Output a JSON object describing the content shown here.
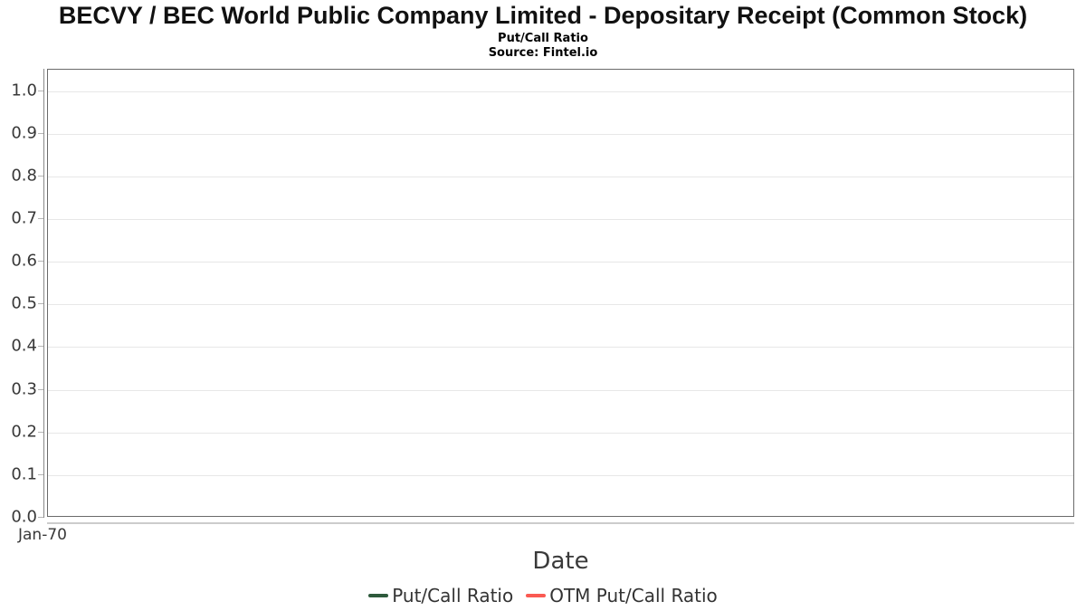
{
  "header": {
    "title": "BECVY / BEC World Public Company Limited - Depositary Receipt (Common Stock)",
    "subtitle": "Put/Call Ratio",
    "source": "Source: Fintel.io"
  },
  "chart_data": {
    "type": "line",
    "title": "Put/Call Ratio",
    "xlabel": "Date",
    "ylabel": "",
    "ylim": [
      0,
      1.05
    ],
    "grid": true,
    "legend_position": "bottom",
    "yticks": [
      0.0,
      0.1,
      0.2,
      0.3,
      0.4,
      0.5,
      0.6,
      0.7,
      0.8,
      0.9,
      1.0
    ],
    "ytick_labels": [
      "0.0",
      "0.1",
      "0.2",
      "0.3",
      "0.4",
      "0.5",
      "0.6",
      "0.7",
      "0.8",
      "0.9",
      "1.0"
    ],
    "xtick_labels": [
      "Jan-70"
    ],
    "series": [
      {
        "name": "Put/Call Ratio",
        "color": "#2e5a3c",
        "x": [],
        "values": []
      },
      {
        "name": "OTM Put/Call Ratio",
        "color": "#fa5a52",
        "x": [],
        "values": []
      }
    ]
  },
  "colors": {
    "grid": "#e7e7e7",
    "plot_border": "#6b6b6b",
    "y_axis_line": "#8a8a8a",
    "x_axis_line": "#cccccc",
    "tick": "#b5b5b5",
    "tick_label": "#383838",
    "axis_title": "#3a3a3a",
    "legend_text": "#333333"
  }
}
